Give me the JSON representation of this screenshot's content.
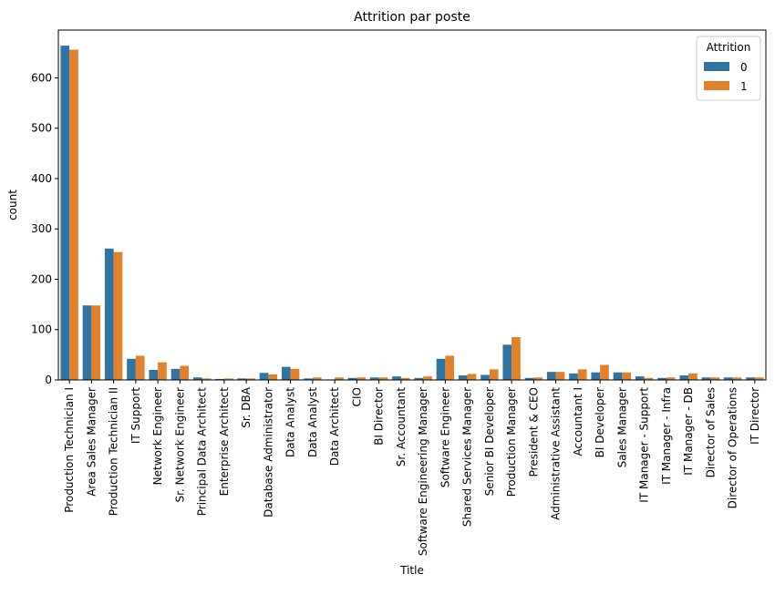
{
  "chart_data": {
    "type": "bar",
    "title": "Attrition par poste",
    "xlabel": "Title",
    "ylabel": "count",
    "ylim": [
      0,
      695
    ],
    "yticks": [
      0,
      100,
      200,
      300,
      400,
      500,
      600
    ],
    "grid": false,
    "legend": {
      "title": "Attrition",
      "placement": "top-right"
    },
    "categories": [
      "Production Technician I",
      "Area Sales Manager",
      "Production Technician II",
      "IT Support",
      "Network Engineer",
      "Sr. Network Engineer",
      "Principal Data Architect",
      "Enterprise Architect",
      "Sr. DBA",
      "Database Administrator",
      "Data Analyst",
      "Data Analyst ",
      "Data Architect",
      "CIO",
      "BI Director",
      "Sr. Accountant",
      "Software Engineering Manager",
      "Software Engineer",
      "Shared Services Manager",
      "Senior BI Developer",
      "Production Manager",
      "President & CEO",
      "Administrative Assistant",
      "Accountant I",
      "BI Developer",
      "Sales Manager",
      "IT Manager - Support",
      "IT Manager - Infra",
      "IT Manager - DB",
      "Director of Sales",
      "Director of Operations",
      "IT Director"
    ],
    "series": [
      {
        "name": "0",
        "color": "#3274a1",
        "values": [
          664,
          148,
          261,
          42,
          20,
          22,
          5,
          2,
          3,
          14,
          26,
          3,
          1,
          4,
          5,
          7,
          4,
          42,
          9,
          10,
          70,
          4,
          16,
          13,
          15,
          15,
          7,
          4,
          9,
          5,
          5,
          5
        ]
      },
      {
        "name": "1",
        "color": "#e1812c",
        "values": [
          656,
          148,
          254,
          48,
          35,
          28,
          3,
          3,
          3,
          11,
          22,
          5,
          5,
          5,
          5,
          4,
          7,
          48,
          12,
          21,
          85,
          5,
          16,
          21,
          30,
          15,
          4,
          5,
          13,
          5,
          5,
          5
        ]
      }
    ]
  }
}
